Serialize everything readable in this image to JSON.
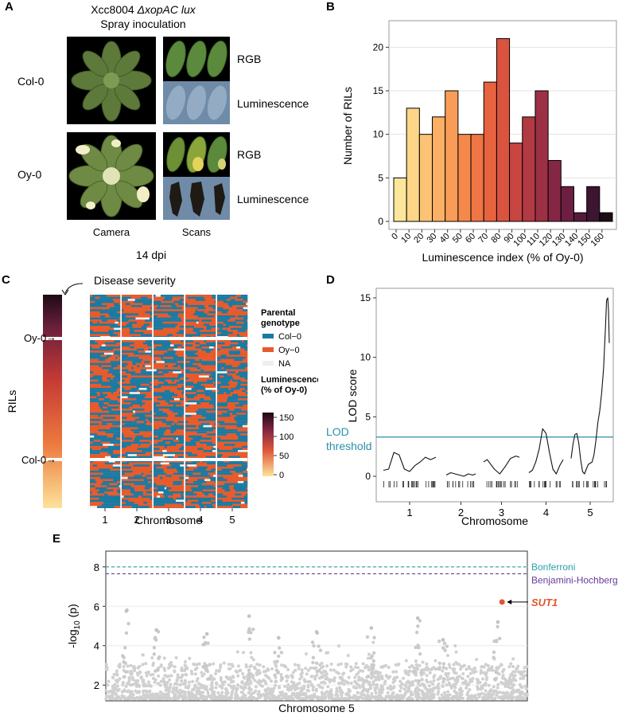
{
  "panels": {
    "a": {
      "letter": "A",
      "title_strain": "Xcc8004 ",
      "title_strain_italic": "ΔxopAC lux",
      "subtitle": "Spray inoculation",
      "rows": [
        "Col-0",
        "Oy-0"
      ],
      "scan_labels": [
        "RGB",
        "Luminescence"
      ],
      "col_labels": [
        "Camera",
        "Scans"
      ],
      "footer": "14 dpi"
    },
    "b": {
      "letter": "B",
      "chart_data": {
        "type": "bar",
        "xlabel": "Luminescence index (% of Oy-0)",
        "ylabel": "Number of RILs",
        "categories": [
          "0",
          "10",
          "20",
          "30",
          "40",
          "50",
          "60",
          "70",
          "80",
          "90",
          "100",
          "110",
          "120",
          "130",
          "140",
          "150",
          "160"
        ],
        "values": [
          5,
          13,
          10,
          12,
          15,
          10,
          10,
          16,
          21,
          9,
          12,
          15,
          7,
          4,
          1,
          4,
          1
        ],
        "colors": [
          "#fde69b",
          "#fcd587",
          "#fcc375",
          "#fbb065",
          "#f99c57",
          "#f5894c",
          "#ef7544",
          "#e7633f",
          "#d9533f",
          "#c74641",
          "#b23a43",
          "#9c3044",
          "#852744",
          "#6c1f40",
          "#551a3a",
          "#3d1530",
          "#1c0c18"
        ],
        "yticks": [
          0,
          5,
          10,
          15,
          20
        ],
        "ylim": [
          0,
          22.5
        ],
        "grid": true
      }
    },
    "c": {
      "letter": "C",
      "annotation": "Disease severity",
      "ylabel": "RILs",
      "markers": [
        "Oy-0",
        "Col-0"
      ],
      "xlabel": "Chromosome",
      "chromosomes": [
        "1",
        "2",
        "3",
        "4",
        "5"
      ],
      "legend_genotype_title": [
        "Parental",
        "genotype"
      ],
      "legend_genotype": [
        {
          "label": "Col−0",
          "color": "#1c7aa1"
        },
        {
          "label": "Oy−0",
          "color": "#e85a2b"
        },
        {
          "label": "NA",
          "color": "#eeeeee"
        }
      ],
      "legend_lum_title": [
        "Luminescence",
        "(% of Oy-0)"
      ],
      "legend_lum_ticks": [
        "150",
        "100",
        "50",
        "0"
      ],
      "colors": {
        "col": "#1c7aa1",
        "oy": "#e85a2b"
      }
    },
    "d": {
      "letter": "D",
      "ylabel": "LOD score",
      "xlabel": "Chromosome",
      "threshold_label": [
        "LOD",
        "threshold"
      ],
      "threshold_value": 3.3,
      "threshold_color": "#2a8fa8",
      "chart_data": {
        "type": "line",
        "yticks": [
          0,
          5,
          10,
          15
        ],
        "ylim": [
          -0.3,
          16
        ],
        "chromosomes": [
          "1",
          "2",
          "3",
          "4",
          "5"
        ],
        "series": [
          {
            "chr": "1",
            "x": [
              0,
              0.1,
              0.2,
              0.3,
              0.4,
              0.5,
              0.6,
              0.7,
              0.8,
              0.9,
              1.0
            ],
            "y": [
              0.5,
              0.6,
              2.0,
              1.8,
              0.6,
              0.4,
              0.9,
              1.2,
              1.6,
              1.4,
              1.6
            ]
          },
          {
            "chr": "2",
            "x": [
              0,
              0.15,
              0.3,
              0.45,
              0.6,
              0.75,
              0.9,
              1.0
            ],
            "y": [
              0.1,
              0.3,
              0.2,
              0.1,
              0.0,
              0.2,
              0.1,
              0.2
            ]
          },
          {
            "chr": "3",
            "x": [
              0,
              0.1,
              0.2,
              0.3,
              0.45,
              0.6,
              0.75,
              0.9,
              1.0
            ],
            "y": [
              1.2,
              1.4,
              1.0,
              0.6,
              0.2,
              0.8,
              1.5,
              1.7,
              1.6
            ]
          },
          {
            "chr": "4",
            "x": [
              0,
              0.1,
              0.2,
              0.3,
              0.4,
              0.5,
              0.6,
              0.7,
              0.8,
              0.9,
              1.0
            ],
            "y": [
              0.3,
              0.5,
              1.2,
              2.3,
              4.0,
              3.6,
              2.0,
              0.6,
              0.2,
              0.9,
              1.4
            ]
          },
          {
            "chr": "5",
            "x": [
              0,
              0.05,
              0.1,
              0.15,
              0.2,
              0.25,
              0.3,
              0.35,
              0.4,
              0.45,
              0.5,
              0.55,
              0.6,
              0.65,
              0.7,
              0.75,
              0.8,
              0.85,
              0.9,
              0.93,
              0.96,
              0.98,
              1.0
            ],
            "y": [
              1.5,
              2.7,
              3.5,
              3.6,
              2.8,
              1.4,
              0.4,
              0.2,
              0.6,
              1.0,
              1.1,
              1.2,
              1.8,
              3.0,
              4.5,
              5.5,
              7.0,
              9.0,
              12.5,
              14.8,
              15.0,
              14.0,
              11.2
            ]
          }
        ]
      }
    },
    "e": {
      "letter": "E",
      "ylabel_base": "-log",
      "ylabel_sub": "10",
      "ylabel_tail": " (p)",
      "xlabel": "Chromosome 5",
      "bonferroni_label": "Bonferroni",
      "bonferroni_value": 8.0,
      "bonferroni_color": "#2aa1a8",
      "bh_label": "Benjamini-Hochberg",
      "bh_value": 7.65,
      "bh_color": "#6a3aa0",
      "gene_label": "SUT1",
      "gene_color": "#e0552a",
      "chart_data": {
        "type": "scatter",
        "yticks": [
          2,
          4,
          6,
          8
        ],
        "ylim": [
          1.2,
          8.8
        ],
        "highlight": {
          "label": "SUT1",
          "x": 0.94,
          "y": 6.22
        },
        "peaks": [
          {
            "x": 0.05,
            "y": 5.8
          },
          {
            "x": 0.12,
            "y": 4.8
          },
          {
            "x": 0.24,
            "y": 4.6
          },
          {
            "x": 0.34,
            "y": 5.5
          },
          {
            "x": 0.41,
            "y": 4.4
          },
          {
            "x": 0.5,
            "y": 4.7
          },
          {
            "x": 0.63,
            "y": 4.9
          },
          {
            "x": 0.74,
            "y": 5.4
          },
          {
            "x": 0.8,
            "y": 4.3
          },
          {
            "x": 0.93,
            "y": 5.2
          }
        ]
      }
    }
  }
}
